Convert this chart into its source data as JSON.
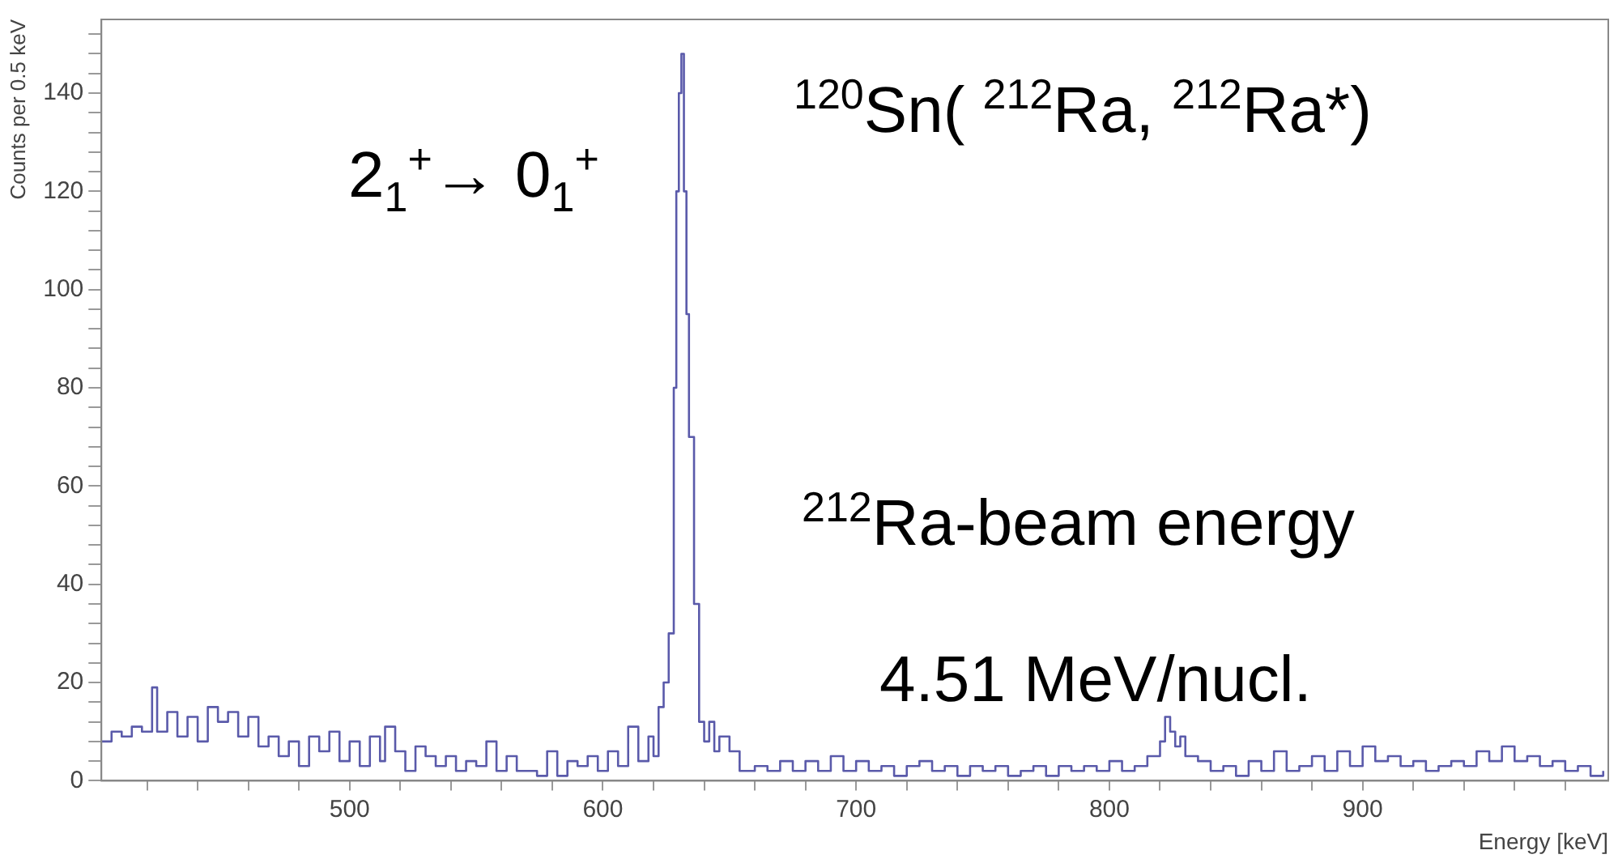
{
  "chart_data": {
    "type": "step",
    "xlabel": "Energy [keV]",
    "ylabel": "Counts per 0.5 keV",
    "annotations": [
      "2$_{1}$$^{+}$→ 0$_{1}$$^{+}$",
      "$^{120}$Sn( $^{212}$Ra, $^{212}$Ra*)",
      "$^{212}$Ra-beam energy",
      "4.51 MeV/nucl."
    ],
    "xlim": [
      402,
      997
    ],
    "xticks": [
      {
        "value": 420,
        "label": null
      },
      {
        "value": 440,
        "label": null
      },
      {
        "value": 460,
        "label": null
      },
      {
        "value": 480,
        "label": null
      },
      500,
      {
        "value": 520,
        "label": null
      },
      {
        "value": 540,
        "label": null
      },
      {
        "value": 560,
        "label": null
      },
      {
        "value": 580,
        "label": null
      },
      600,
      {
        "value": 620,
        "label": null
      },
      {
        "value": 640,
        "label": null
      },
      {
        "value": 660,
        "label": null
      },
      {
        "value": 680,
        "label": null
      },
      700,
      {
        "value": 720,
        "label": null
      },
      {
        "value": 740,
        "label": null
      },
      {
        "value": 760,
        "label": null
      },
      {
        "value": 780,
        "label": null
      },
      800,
      {
        "value": 820,
        "label": null
      },
      {
        "value": 840,
        "label": null
      },
      {
        "value": 860,
        "label": null
      },
      {
        "value": 880,
        "label": null
      },
      900,
      {
        "value": 920,
        "label": null
      },
      {
        "value": 940,
        "label": null
      },
      {
        "value": 960,
        "label": null
      },
      {
        "value": 980,
        "label": null
      }
    ],
    "ylim": [
      0,
      155
    ],
    "yticks": [
      0,
      {
        "value": 4,
        "label": null
      },
      {
        "value": 8,
        "label": null
      },
      {
        "value": 12,
        "label": null
      },
      {
        "value": 16,
        "label": null
      },
      20,
      {
        "value": 24,
        "label": null
      },
      {
        "value": 28,
        "label": null
      },
      {
        "value": 32,
        "label": null
      },
      {
        "value": 36,
        "label": null
      },
      40,
      {
        "value": 44,
        "label": null
      },
      {
        "value": 48,
        "label": null
      },
      {
        "value": 52,
        "label": null
      },
      {
        "value": 56,
        "label": null
      },
      60,
      {
        "value": 64,
        "label": null
      },
      {
        "value": 68,
        "label": null
      },
      {
        "value": 72,
        "label": null
      },
      {
        "value": 76,
        "label": null
      },
      80,
      {
        "value": 84,
        "label": null
      },
      {
        "value": 88,
        "label": null
      },
      {
        "value": 92,
        "label": null
      },
      {
        "value": 96,
        "label": null
      },
      100,
      {
        "value": 104,
        "label": null
      },
      {
        "value": 108,
        "label": null
      },
      {
        "value": 112,
        "label": null
      },
      {
        "value": 116,
        "label": null
      },
      120,
      {
        "value": 124,
        "label": null
      },
      {
        "value": 128,
        "label": null
      },
      {
        "value": 132,
        "label": null
      },
      {
        "value": 136,
        "label": null
      },
      140,
      {
        "value": 144,
        "label": null
      },
      {
        "value": 148,
        "label": null
      },
      {
        "value": 152,
        "label": null
      }
    ],
    "grid": false,
    "legend": false,
    "series": [
      {
        "color": "#5a5aaa",
        "x": [
          402,
          406,
          410,
          414,
          418,
          422,
          424,
          428,
          432,
          436,
          440,
          444,
          448,
          452,
          456,
          460,
          464,
          468,
          472,
          476,
          480,
          484,
          488,
          492,
          496,
          500,
          504,
          508,
          512,
          514,
          518,
          522,
          526,
          530,
          534,
          538,
          542,
          546,
          550,
          554,
          558,
          562,
          566,
          570,
          574,
          578,
          582,
          586,
          590,
          594,
          598,
          602,
          606,
          610,
          614,
          618,
          620,
          622,
          624,
          626,
          628,
          629,
          630,
          631,
          632,
          633,
          634,
          636,
          638,
          640,
          642,
          644,
          646,
          650,
          654,
          660,
          665,
          670,
          675,
          680,
          685,
          690,
          695,
          700,
          705,
          710,
          715,
          720,
          725,
          730,
          735,
          740,
          745,
          750,
          755,
          760,
          765,
          770,
          775,
          780,
          785,
          790,
          795,
          800,
          805,
          810,
          815,
          820,
          822,
          824,
          826,
          828,
          830,
          835,
          840,
          845,
          850,
          855,
          860,
          865,
          870,
          875,
          880,
          885,
          890,
          895,
          900,
          905,
          910,
          915,
          920,
          925,
          930,
          935,
          940,
          945,
          950,
          955,
          960,
          965,
          970,
          975,
          980,
          985,
          990,
          995
        ],
        "values": [
          8,
          10,
          9,
          11,
          10,
          19,
          10,
          14,
          9,
          13,
          8,
          15,
          12,
          14,
          9,
          13,
          7,
          9,
          5,
          8,
          3,
          9,
          6,
          10,
          4,
          8,
          3,
          9,
          4,
          11,
          6,
          2,
          7,
          5,
          3,
          5,
          2,
          4,
          3,
          8,
          2,
          5,
          2,
          2,
          1,
          6,
          1,
          4,
          3,
          5,
          2,
          6,
          3,
          11,
          4,
          9,
          5,
          15,
          20,
          30,
          80,
          120,
          140,
          148,
          120,
          95,
          70,
          36,
          12,
          8,
          12,
          6,
          9,
          6,
          2,
          3,
          2,
          4,
          2,
          4,
          2,
          5,
          2,
          4,
          2,
          3,
          1,
          3,
          4,
          2,
          3,
          1,
          3,
          2,
          3,
          1,
          2,
          3,
          1,
          3,
          2,
          3,
          2,
          4,
          2,
          3,
          5,
          8,
          13,
          10,
          7,
          9,
          5,
          4,
          2,
          3,
          1,
          4,
          2,
          6,
          2,
          3,
          5,
          2,
          6,
          3,
          7,
          4,
          5,
          3,
          4,
          2,
          3,
          4,
          3,
          6,
          4,
          7,
          4,
          5,
          3,
          4,
          2,
          3,
          1,
          2
        ]
      }
    ]
  }
}
